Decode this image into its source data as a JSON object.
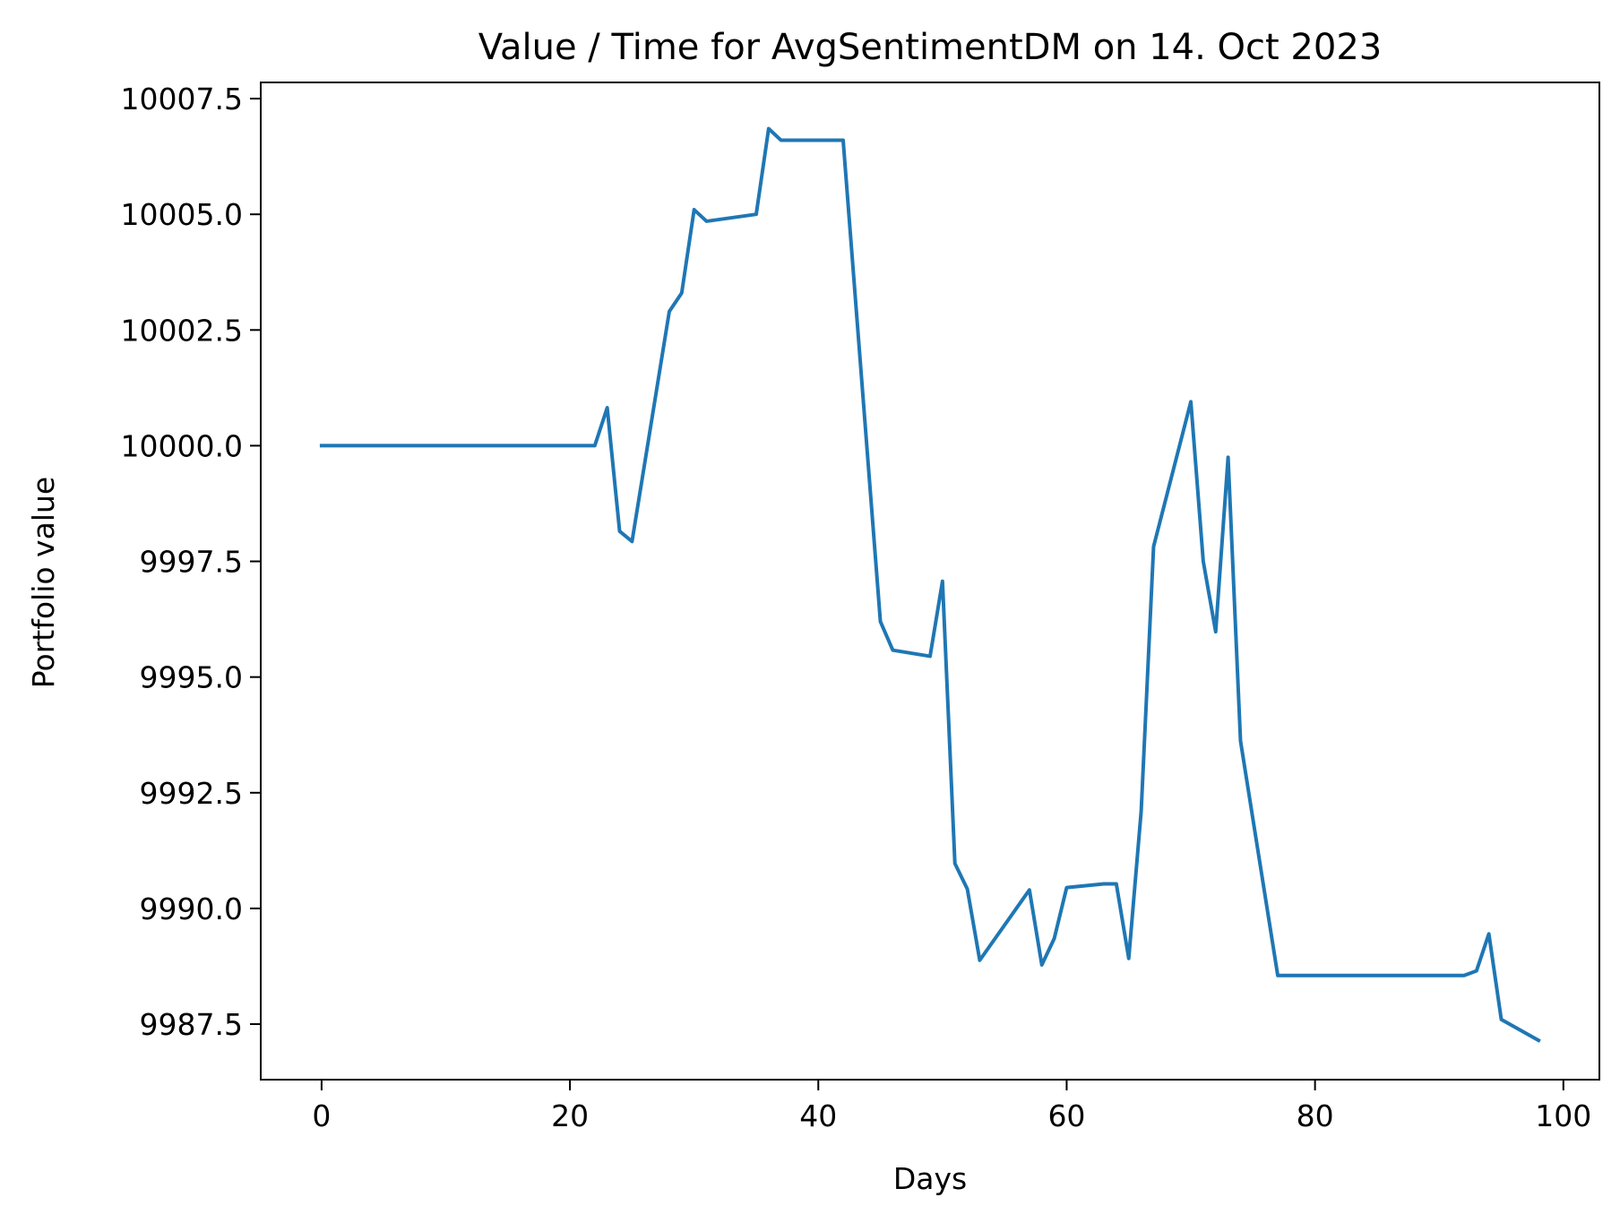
{
  "chart_data": {
    "type": "line",
    "title": "Value / Time for AvgSentimentDM on 14. Oct 2023",
    "xlabel": "Days",
    "ylabel": "Portfolio value",
    "xlim": [
      -4.9,
      102.9
    ],
    "ylim": [
      9986.3,
      10007.85
    ],
    "grid": false,
    "x_ticks": [
      0,
      20,
      40,
      60,
      80,
      100
    ],
    "x_tick_labels": [
      "0",
      "20",
      "40",
      "60",
      "80",
      "100"
    ],
    "y_ticks": [
      9987.5,
      9990.0,
      9992.5,
      9995.0,
      9997.5,
      10000.0,
      10002.5,
      10005.0,
      10007.5
    ],
    "y_tick_labels": [
      "9987.5",
      "9990.0",
      "9992.5",
      "9995.0",
      "9997.5",
      "10000.0",
      "10002.5",
      "10005.0",
      "10007.5"
    ],
    "series": [
      {
        "name": "",
        "color": "#1f77b4",
        "x": [
          0,
          22,
          23,
          24,
          25,
          28,
          29,
          30,
          31,
          35,
          36,
          37,
          42,
          45,
          46,
          49,
          50,
          51,
          52,
          53,
          57,
          58,
          59,
          60,
          63,
          64,
          65,
          66,
          67,
          70,
          71,
          72,
          73,
          74,
          77,
          92,
          93,
          94,
          95,
          98
        ],
        "y": [
          10000.0,
          10000.0,
          10000.82,
          9998.15,
          9997.93,
          10002.9,
          10003.3,
          10005.1,
          10004.85,
          10005.0,
          10006.85,
          10006.6,
          10006.6,
          9996.2,
          9995.58,
          9995.45,
          9997.07,
          9990.97,
          9990.42,
          9988.88,
          9990.4,
          9988.78,
          9989.35,
          9990.45,
          9990.53,
          9990.53,
          9988.92,
          9992.1,
          9997.82,
          10000.95,
          9997.5,
          9995.98,
          9999.75,
          9993.62,
          9988.55,
          9988.55,
          9988.65,
          9989.45,
          9987.6,
          9987.15
        ]
      }
    ]
  }
}
